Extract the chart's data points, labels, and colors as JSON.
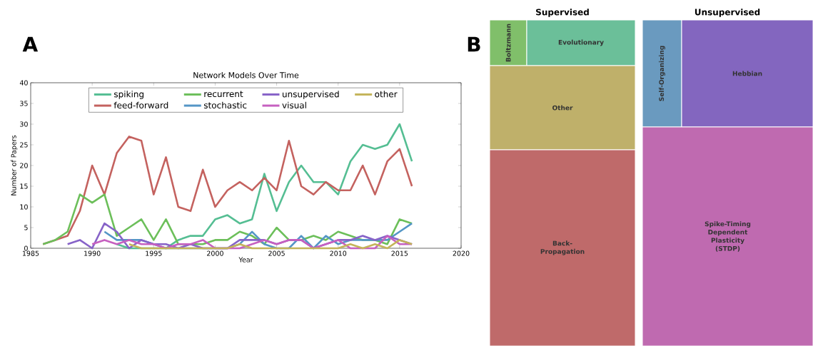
{
  "chart_data": [
    {
      "type": "line",
      "title": "Network Models Over Time",
      "xlabel": "Year",
      "ylabel": "Number of Papers",
      "annotations": [
        "A"
      ],
      "x": [
        1986,
        1987,
        1988,
        1989,
        1990,
        1991,
        1992,
        1993,
        1994,
        1995,
        1996,
        1997,
        1998,
        1999,
        2000,
        2001,
        2002,
        2003,
        2004,
        2005,
        2006,
        2007,
        2008,
        2009,
        2010,
        2011,
        2012,
        2013,
        2014,
        2015,
        2016
      ],
      "series": [
        {
          "name": "spiking",
          "color": "#55be93",
          "x": [
            1992,
            1993,
            1994,
            1995,
            1996,
            1997,
            1998,
            1999,
            2000,
            2001,
            2002,
            2003,
            2004,
            2005,
            2006,
            2007,
            2008,
            2009,
            2010,
            2011,
            2012,
            2013,
            2014,
            2015,
            2016
          ],
          "values": [
            1,
            0,
            0,
            0,
            0,
            2,
            3,
            3,
            7,
            8,
            6,
            7,
            18,
            9,
            16,
            20,
            16,
            16,
            13,
            21,
            25,
            24,
            25,
            30,
            21
          ]
        },
        {
          "name": "feed-forward",
          "color": "#c4625f",
          "values": [
            1,
            2,
            3,
            9,
            20,
            13,
            23,
            27,
            26,
            13,
            22,
            10,
            9,
            19,
            10,
            14,
            16,
            14,
            17,
            14,
            26,
            15,
            13,
            16,
            14,
            14,
            20,
            13,
            21,
            24,
            15
          ]
        },
        {
          "name": "recurrent",
          "color": "#6cbf5a",
          "values": [
            1,
            2,
            4,
            13,
            11,
            13,
            3,
            5,
            7,
            2,
            7,
            1,
            1,
            1,
            2,
            2,
            4,
            3,
            1,
            5,
            2,
            2,
            3,
            2,
            4,
            3,
            2,
            2,
            1,
            7,
            6
          ]
        },
        {
          "name": "stochastic",
          "color": "#5496c6",
          "x": [
            1991,
            1992,
            1993,
            1994,
            1995,
            1996,
            1997,
            1998,
            1999,
            2000,
            2001,
            2002,
            2003,
            2004,
            2005,
            2006,
            2007,
            2008,
            2009,
            2010,
            2011,
            2012,
            2013,
            2014,
            2015,
            2016
          ],
          "values": [
            4,
            2,
            2,
            2,
            1,
            0,
            0,
            0,
            0,
            0,
            0,
            1,
            4,
            1,
            0,
            0,
            3,
            0,
            3,
            1,
            2,
            2,
            2,
            2,
            4,
            6
          ]
        },
        {
          "name": "unsupervised",
          "color": "#8763c8",
          "x": [
            1988,
            1989,
            1990,
            1991,
            1992,
            1993,
            1994,
            1995,
            1996,
            1997,
            1998,
            1999,
            2000,
            2001,
            2002,
            2003,
            2004,
            2005,
            2006,
            2007,
            2008,
            2009,
            2010,
            2011,
            2012,
            2013,
            2014,
            2015,
            2016
          ],
          "values": [
            1,
            2,
            0,
            6,
            4,
            0,
            2,
            1,
            1,
            0,
            1,
            0,
            0,
            0,
            2,
            2,
            2,
            1,
            2,
            2,
            0,
            1,
            2,
            2,
            3,
            2,
            3,
            2,
            1
          ]
        },
        {
          "name": "visual",
          "color": "#c660c0",
          "x": [
            1990,
            1991,
            1992,
            1993,
            1994,
            1995,
            1996,
            1997,
            1998,
            1999,
            2000,
            2001,
            2002,
            2003,
            2004,
            2005,
            2006,
            2007,
            2008,
            2009,
            2010,
            2011,
            2012,
            2013,
            2014,
            2015,
            2016
          ],
          "values": [
            1,
            2,
            1,
            2,
            1,
            1,
            0,
            1,
            1,
            2,
            0,
            0,
            0,
            1,
            2,
            1,
            2,
            2,
            0,
            1,
            2,
            0,
            0,
            0,
            3,
            1,
            1
          ]
        },
        {
          "name": "other",
          "color": "#c4b45a",
          "x": [
            1993,
            1994,
            1995,
            1996,
            1997,
            1998,
            1999,
            2000,
            2001,
            2002,
            2003,
            2004,
            2005,
            2006,
            2007,
            2008,
            2009,
            2010,
            2011,
            2012,
            2013,
            2014,
            2015,
            2016
          ],
          "values": [
            1,
            0,
            0,
            0,
            0,
            0,
            0,
            0,
            0,
            1,
            0,
            0,
            0,
            0,
            0,
            0,
            0,
            0,
            1,
            0,
            1,
            0,
            2,
            1
          ]
        }
      ],
      "xlim": [
        1985,
        2020
      ],
      "xticks": [
        1985,
        1990,
        1995,
        2000,
        2005,
        2010,
        2015,
        2020
      ],
      "ylim": [
        0,
        40
      ],
      "yticks": [
        0,
        5,
        10,
        15,
        20,
        25,
        30,
        35,
        40
      ],
      "legend": "top",
      "marker": "none",
      "line_style": "solid",
      "grid": false
    },
    {
      "type": "other",
      "annotations": [
        "B",
        "Supervised",
        "Unsupervised"
      ],
      "categories": [
        "Boltzmann",
        "Evolutionary",
        "Other",
        "Back-Propagation",
        "Self-Organizing",
        "Hebbian",
        "Spike-Timing Dependent Plasticity (STDP)"
      ],
      "colors": [
        "#80bf6a",
        "#6bbf99",
        "#bfb06a",
        "#bf6a6a",
        "#6a9abf",
        "#8366bf",
        "#bf6ab0"
      ]
    }
  ]
}
